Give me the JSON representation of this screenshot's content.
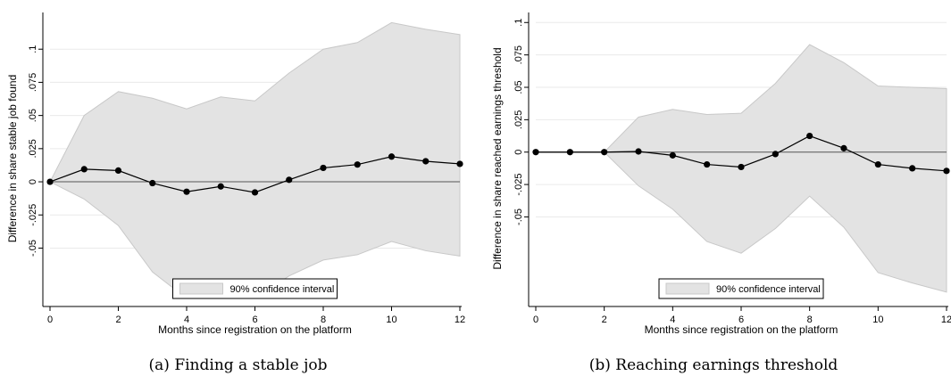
{
  "chart_data": [
    {
      "type": "line",
      "caption": "(a) Finding a stable job",
      "xlabel": "Months since registration on the platform",
      "ylabel": "Difference in share stable job found",
      "legend": "90% confidence interval",
      "legend_position": "bottom-center",
      "xlim": [
        0,
        12
      ],
      "ylim": [
        -0.09,
        0.125
      ],
      "xticks": [
        0,
        2,
        4,
        6,
        8,
        10,
        12
      ],
      "yticks": [
        -0.05,
        -0.025,
        0,
        0.025,
        0.05,
        0.075,
        0.1
      ],
      "ytick_labels": [
        "-.05",
        "-.025",
        "0",
        ".025",
        ".05",
        ".075",
        ".1"
      ],
      "x": [
        0,
        1,
        2,
        3,
        4,
        5,
        6,
        7,
        8,
        9,
        10,
        11,
        12
      ],
      "values": [
        0,
        0.0095,
        0.0085,
        -0.001,
        -0.0075,
        -0.0035,
        -0.008,
        0.0015,
        0.0105,
        0.013,
        0.019,
        0.0155,
        0.0135
      ],
      "ci_upper": [
        0,
        0.05,
        0.068,
        0.063,
        0.055,
        0.064,
        0.061,
        0.082,
        0.1,
        0.105,
        0.12,
        0.115,
        0.111
      ],
      "ci_lower": [
        0,
        -0.013,
        -0.033,
        -0.068,
        -0.088,
        -0.088,
        -0.088,
        -0.071,
        -0.059,
        -0.055,
        -0.045,
        -0.052,
        -0.056
      ],
      "grid": true,
      "zero_line": true,
      "colors": {
        "line": "#000000",
        "band": "#e3e3e3",
        "band_edge": "#c8c8c8",
        "grid": "#eaeaea"
      }
    },
    {
      "type": "line",
      "caption": "(b) Reaching earnings threshold",
      "xlabel": "Months since registration on the platform",
      "ylabel": "Difference in share reached earnings threshold",
      "legend": "90% confidence interval",
      "legend_position": "bottom-center",
      "xlim": [
        0,
        12
      ],
      "ylim": [
        -0.115,
        0.105
      ],
      "xticks": [
        0,
        2,
        4,
        6,
        8,
        10,
        12
      ],
      "yticks": [
        -0.05,
        -0.025,
        0,
        0.025,
        0.05,
        0.075,
        0.1
      ],
      "ytick_labels": [
        "-.05",
        "-.025",
        "0",
        ".025",
        ".05",
        ".075",
        ".1"
      ],
      "x": [
        0,
        1,
        2,
        3,
        4,
        5,
        6,
        7,
        8,
        9,
        10,
        11,
        12
      ],
      "values": [
        0,
        0,
        0,
        0.0005,
        -0.0025,
        -0.0095,
        -0.0115,
        -0.0015,
        0.0125,
        0.003,
        -0.0095,
        -0.0125,
        -0.0145
      ],
      "ci_upper": [
        0,
        0,
        0,
        0.027,
        0.033,
        0.029,
        0.03,
        0.053,
        0.083,
        0.069,
        0.051,
        0.05,
        0.049
      ],
      "ci_lower": [
        0,
        0,
        0,
        -0.026,
        -0.044,
        -0.069,
        -0.078,
        -0.059,
        -0.034,
        -0.058,
        -0.093,
        -0.101,
        -0.108
      ],
      "grid": true,
      "zero_line": true,
      "colors": {
        "line": "#000000",
        "band": "#e3e3e3",
        "band_edge": "#c8c8c8",
        "grid": "#eaeaea"
      }
    }
  ]
}
